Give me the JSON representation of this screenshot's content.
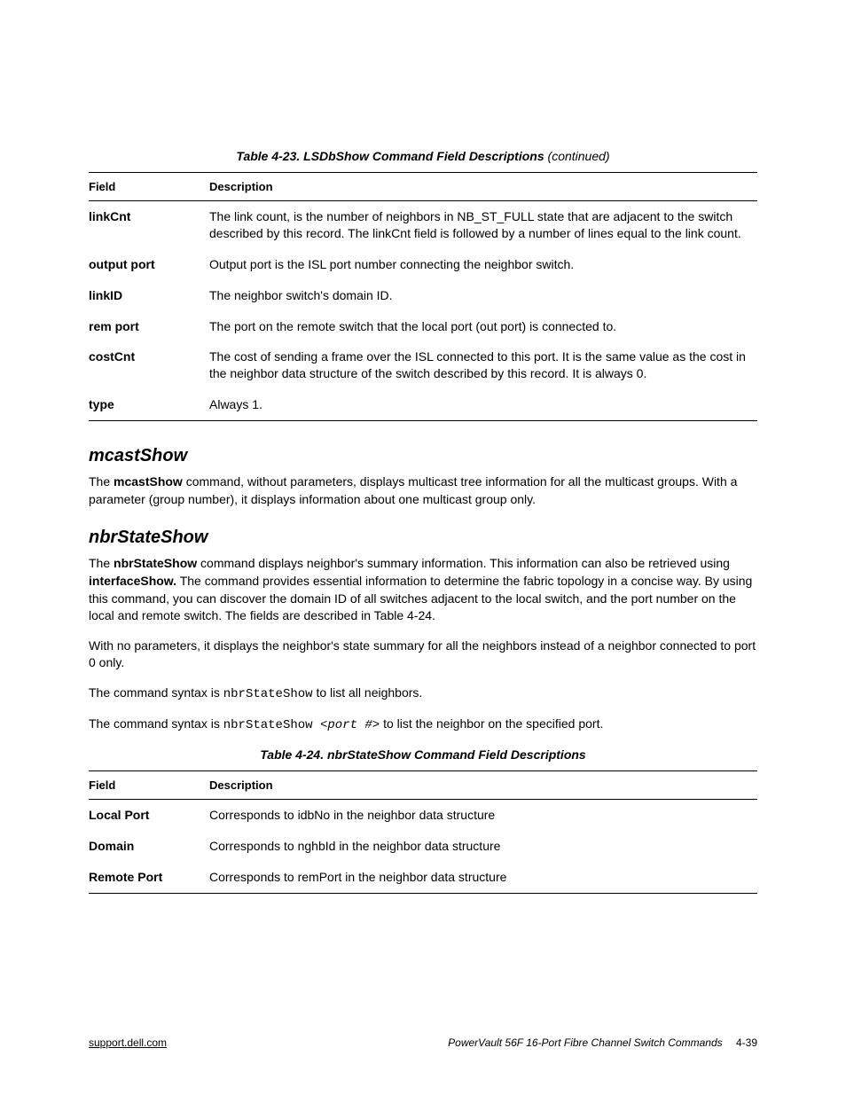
{
  "table1": {
    "caption_prefix": "Table 4-23.  LSDbShow Command Field Descriptions",
    "caption_suffix": " (continued)",
    "col_field": "Field",
    "col_desc": "Description",
    "rows": [
      {
        "field": "linkCnt",
        "desc": "The link count, is the number of neighbors in NB_ST_FULL state that are adjacent to the switch described by this record. The linkCnt field is followed by a number of lines equal to the link count."
      },
      {
        "field": "output port",
        "desc": "Output port is the ISL port number connecting the neighbor switch."
      },
      {
        "field": "linkID",
        "desc": "The neighbor switch's domain ID."
      },
      {
        "field": "rem port",
        "desc": "The port on the remote switch that the local port (out port) is connected to."
      },
      {
        "field": "costCnt",
        "desc": "The cost of sending a frame over the ISL connected to this port. It is the same value as the cost in the neighbor data structure of the switch described by this record. It is always 0."
      },
      {
        "field": "type",
        "desc": "Always 1."
      }
    ]
  },
  "mcast": {
    "heading": "mcastShow",
    "para_pre": "The ",
    "para_bold": "mcastShow",
    "para_post": " command, without parameters, displays multicast tree information for all the multicast groups. With a parameter (group number), it displays information about one multicast group only."
  },
  "nbr": {
    "heading": "nbrStateShow",
    "p1_pre": "The ",
    "p1_bold1": "nbrStateShow",
    "p1_mid": " command displays neighbor's summary information. This information can also be retrieved using ",
    "p1_bold2": "interfaceShow.",
    "p1_post": " The command provides essential information to determine the fabric topology in a concise way. By using this command, you can discover the domain ID of all switches adjacent to the local switch, and the port number on the local and remote switch. The fields are described in Table 4-24.",
    "p2": "With no parameters, it displays the neighbor's state summary for all the neighbors instead of a neighbor connected to port 0 only.",
    "p3_pre": "The command syntax is ",
    "p3_code": "nbrStateShow",
    "p3_post": " to list all neighbors.",
    "p4_pre": "The command syntax is ",
    "p4_code1": "nbrStateShow <",
    "p4_code_it": "port #",
    "p4_code2": ">",
    "p4_post": " to list the neighbor on the specified port."
  },
  "table2": {
    "caption": "Table 4-24.  nbrStateShow Command Field Descriptions",
    "col_field": "Field",
    "col_desc": "Description",
    "rows": [
      {
        "field": "Local Port",
        "desc": "Corresponds to idbNo in the neighbor data structure"
      },
      {
        "field": "Domain",
        "desc": "Corresponds to nghbId in the neighbor data structure"
      },
      {
        "field": "Remote Port",
        "desc": "Corresponds to remPort in the neighbor data structure"
      }
    ]
  },
  "footer": {
    "left": "support.dell.com",
    "right_title": "PowerVault 56F 16-Port Fibre Channel Switch Commands",
    "right_page": "4-39"
  }
}
